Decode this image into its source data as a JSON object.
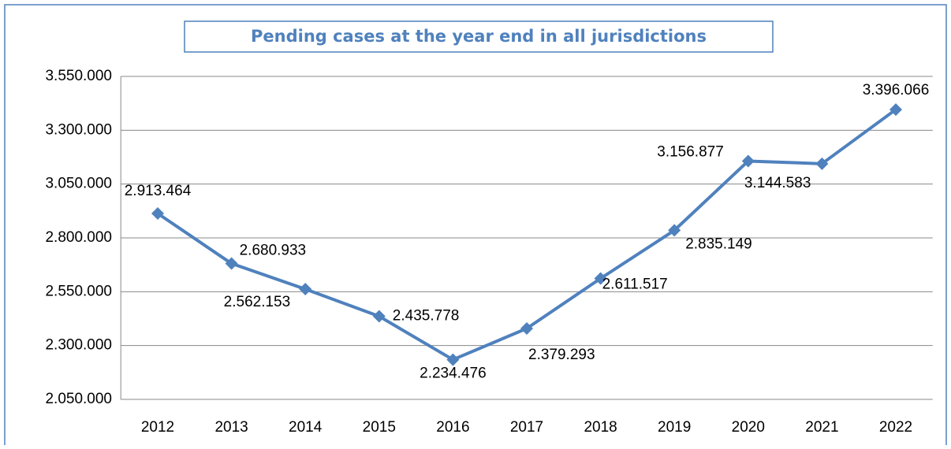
{
  "chart_data": {
    "type": "line",
    "title": "Pending cases at the year end in all jurisdictions",
    "categories": [
      "2012",
      "2013",
      "2014",
      "2015",
      "2016",
      "2017",
      "2018",
      "2019",
      "2020",
      "2021",
      "2022"
    ],
    "series": [
      {
        "name": "Pending cases",
        "color": "#4f81bd",
        "values": [
          2913464,
          2680933,
          2562153,
          2435778,
          2234476,
          2379293,
          2611517,
          2835149,
          3156877,
          3144583,
          3396066
        ],
        "value_labels": [
          "2.913.464",
          "2.680.933",
          "2.562.153",
          "2.435.778",
          "2.234.476",
          "2.379.293",
          "2.611.517",
          "2.835.149",
          "3.156.877",
          "3.144.583",
          "3.396.066"
        ]
      }
    ],
    "ylim": [
      2050000,
      3550000
    ],
    "yticks": [
      {
        "value": 2050000,
        "label": "2.050.000"
      },
      {
        "value": 2300000,
        "label": "2.300.000"
      },
      {
        "value": 2550000,
        "label": "2.550.000"
      },
      {
        "value": 2800000,
        "label": "2.800.000"
      },
      {
        "value": 3050000,
        "label": "3.050.000"
      },
      {
        "value": 3300000,
        "label": "3.300.000"
      },
      {
        "value": 3550000,
        "label": "3.550.000"
      }
    ],
    "grid": true
  }
}
